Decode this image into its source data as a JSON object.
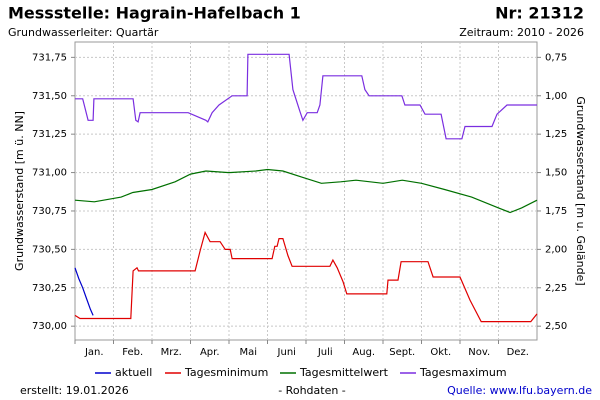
{
  "chart_data": {
    "type": "line",
    "title": "Messstelle: Hagrain-Hafelbach 1",
    "station_number": "Nr: 21312",
    "subtitle": "Grundwasserleiter: Quartär",
    "period": "Zeitraum: 2010 - 2026",
    "y_label": "Grundwasserstand [m ü. NN]",
    "y2_label": "Grundwasserstand [m u. Gelände]",
    "created": "erstellt:  19.01.2026",
    "note": "- Rohdaten -",
    "source": "Quelle: www.lfu.bayern.de",
    "categories": [
      "Jan.",
      "Feb.",
      "Mrz.",
      "Apr.",
      "Mai",
      "Juni",
      "Juli",
      "Aug.",
      "Sept.",
      "Okt.",
      "Nov.",
      "Dez."
    ],
    "xlim": [
      0,
      12
    ],
    "ylim": [
      729.91,
      731.85
    ],
    "yticks": [
      {
        "value": 730.0,
        "label": "730,00"
      },
      {
        "value": 730.25,
        "label": "730,25"
      },
      {
        "value": 730.5,
        "label": "730,50"
      },
      {
        "value": 730.75,
        "label": "730,75"
      },
      {
        "value": 731.0,
        "label": "731,00"
      },
      {
        "value": 731.25,
        "label": "731,25"
      },
      {
        "value": 731.5,
        "label": "731,50"
      },
      {
        "value": 731.75,
        "label": "731,75"
      }
    ],
    "y2lim": [
      2.59,
      0.65
    ],
    "y2ticks": [
      {
        "value": 0.75,
        "label": "0,75"
      },
      {
        "value": 1.0,
        "label": "1,00"
      },
      {
        "value": 1.25,
        "label": "1,25"
      },
      {
        "value": 1.5,
        "label": "1,50"
      },
      {
        "value": 1.75,
        "label": "1,75"
      },
      {
        "value": 2.0,
        "label": "2,00"
      },
      {
        "value": 2.25,
        "label": "2,25"
      },
      {
        "value": 2.5,
        "label": "2,50"
      }
    ],
    "grid": true,
    "legend": "bottom",
    "series": [
      {
        "name": "aktuell",
        "color": "#0000cc",
        "x": [
          0,
          0.1,
          0.2,
          0.3,
          0.4,
          0.47
        ],
        "values": [
          730.38,
          730.31,
          730.25,
          730.18,
          730.11,
          730.07
        ]
      },
      {
        "name": "Tagesminimum",
        "color": "#e00000",
        "x": [
          0,
          0.13,
          1.45,
          1.51,
          1.61,
          1.65,
          3.12,
          3.25,
          3.38,
          3.51,
          3.77,
          3.9,
          4.03,
          4.08,
          5.12,
          5.19,
          5.25,
          5.3,
          5.4,
          5.53,
          5.64,
          6.62,
          6.7,
          6.81,
          6.96,
          7.06,
          8.1,
          8.13,
          8.39,
          8.47,
          9.17,
          9.3,
          10.0,
          10.26,
          10.55,
          11.84,
          12
        ],
        "values": [
          730.07,
          730.05,
          730.05,
          730.36,
          730.38,
          730.36,
          730.36,
          730.49,
          730.61,
          730.55,
          730.55,
          730.5,
          730.5,
          730.44,
          730.44,
          730.52,
          730.52,
          730.57,
          730.57,
          730.46,
          730.39,
          730.39,
          730.43,
          730.38,
          730.29,
          730.21,
          730.21,
          730.3,
          730.3,
          730.42,
          730.42,
          730.32,
          730.32,
          730.17,
          730.03,
          730.03,
          730.08
        ]
      },
      {
        "name": "Tagesmittelwert",
        "color": "#007000",
        "x": [
          0,
          0.5,
          1.2,
          1.5,
          2.0,
          2.6,
          3.0,
          3.4,
          4.0,
          4.7,
          5.0,
          5.4,
          5.9,
          6.4,
          6.9,
          7.3,
          8.0,
          8.5,
          9.0,
          9.6,
          10.3,
          11.0,
          11.3,
          11.6,
          12
        ],
        "values": [
          730.82,
          730.81,
          730.84,
          730.87,
          730.89,
          730.94,
          730.99,
          731.01,
          731.0,
          731.01,
          731.02,
          731.01,
          730.97,
          730.93,
          730.94,
          730.95,
          730.93,
          730.95,
          730.93,
          730.89,
          730.84,
          730.77,
          730.74,
          730.77,
          730.82
        ]
      },
      {
        "name": "Tagesmaximum",
        "color": "#7a2ee0",
        "x": [
          0,
          0.2,
          0.34,
          0.47,
          0.49,
          1.51,
          1.58,
          1.64,
          1.69,
          2.94,
          3.4,
          3.45,
          3.56,
          3.74,
          4.08,
          4.47,
          4.49,
          5.56,
          5.66,
          5.84,
          5.92,
          6.03,
          6.29,
          6.36,
          6.44,
          7.45,
          7.53,
          7.64,
          8.49,
          8.57,
          8.96,
          9.09,
          9.51,
          9.64,
          10.05,
          10.13,
          10.83,
          10.96,
          11.22,
          12
        ],
        "values": [
          731.48,
          731.48,
          731.34,
          731.34,
          731.48,
          731.48,
          731.34,
          731.33,
          731.39,
          731.39,
          731.34,
          731.33,
          731.39,
          731.44,
          731.5,
          731.5,
          731.77,
          731.77,
          731.54,
          731.4,
          731.34,
          731.39,
          731.39,
          731.44,
          731.63,
          731.63,
          731.54,
          731.5,
          731.5,
          731.44,
          731.44,
          731.38,
          731.38,
          731.22,
          731.22,
          731.3,
          731.3,
          731.38,
          731.44,
          731.44
        ]
      }
    ]
  }
}
